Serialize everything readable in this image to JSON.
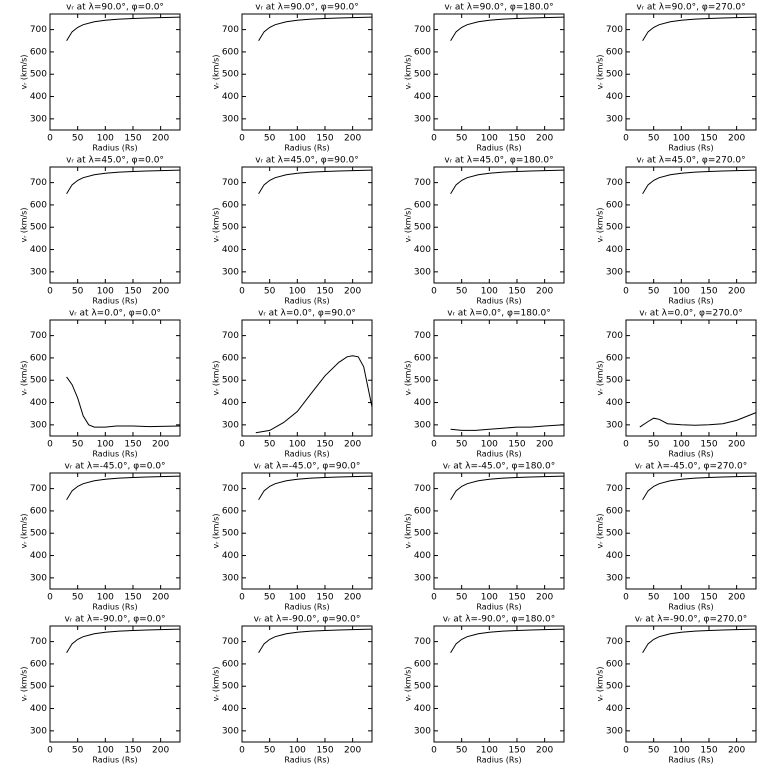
{
  "chart_data": [
    {
      "type": "line",
      "title": "vᵣ at λ=90.0°, φ=0.0°",
      "xlabel": "Radius (Rs)",
      "ylabel": "vᵣ (km/s)",
      "color": "#000000",
      "x": [
        30,
        40,
        50,
        60,
        80,
        100,
        125,
        150,
        175,
        200,
        235
      ],
      "values": [
        650,
        690,
        710,
        722,
        735,
        742,
        747,
        750,
        752,
        754,
        756
      ],
      "xlim": [
        0,
        235
      ],
      "ylim": [
        250,
        770
      ],
      "xticks": [
        0,
        50,
        100,
        150,
        200
      ],
      "yticks": [
        300,
        400,
        500,
        600,
        700
      ]
    },
    {
      "type": "line",
      "title": "vᵣ at λ=90.0°, φ=90.0°",
      "xlabel": "Radius (Rs)",
      "ylabel": "vᵣ (km/s)",
      "color": "#000000",
      "x": [
        30,
        40,
        50,
        60,
        80,
        100,
        125,
        150,
        175,
        200,
        235
      ],
      "values": [
        650,
        690,
        710,
        722,
        735,
        742,
        747,
        750,
        752,
        754,
        756
      ],
      "xlim": [
        0,
        235
      ],
      "ylim": [
        250,
        770
      ],
      "xticks": [
        0,
        50,
        100,
        150,
        200
      ],
      "yticks": [
        300,
        400,
        500,
        600,
        700
      ]
    },
    {
      "type": "line",
      "title": "vᵣ at λ=90.0°, φ=180.0°",
      "xlabel": "Radius (Rs)",
      "ylabel": "vᵣ (km/s)",
      "color": "#000000",
      "x": [
        30,
        40,
        50,
        60,
        80,
        100,
        125,
        150,
        175,
        200,
        235
      ],
      "values": [
        650,
        690,
        710,
        722,
        735,
        742,
        747,
        750,
        752,
        754,
        756
      ],
      "xlim": [
        0,
        235
      ],
      "ylim": [
        250,
        770
      ],
      "xticks": [
        0,
        50,
        100,
        150,
        200
      ],
      "yticks": [
        300,
        400,
        500,
        600,
        700
      ]
    },
    {
      "type": "line",
      "title": "vᵣ at λ=90.0°, φ=270.0°",
      "xlabel": "Radius (Rs)",
      "ylabel": "vᵣ (km/s)",
      "color": "#000000",
      "x": [
        30,
        40,
        50,
        60,
        80,
        100,
        125,
        150,
        175,
        200,
        235
      ],
      "values": [
        650,
        690,
        710,
        722,
        735,
        742,
        747,
        750,
        752,
        754,
        756
      ],
      "xlim": [
        0,
        235
      ],
      "ylim": [
        250,
        770
      ],
      "xticks": [
        0,
        50,
        100,
        150,
        200
      ],
      "yticks": [
        300,
        400,
        500,
        600,
        700
      ]
    },
    {
      "type": "line",
      "title": "vᵣ at λ=45.0°, φ=0.0°",
      "xlabel": "Radius (Rs)",
      "ylabel": "vᵣ (km/s)",
      "color": "#000000",
      "x": [
        30,
        40,
        50,
        60,
        80,
        100,
        125,
        150,
        175,
        200,
        235
      ],
      "values": [
        650,
        690,
        710,
        722,
        735,
        742,
        747,
        750,
        752,
        754,
        756
      ],
      "xlim": [
        0,
        235
      ],
      "ylim": [
        250,
        770
      ],
      "xticks": [
        0,
        50,
        100,
        150,
        200
      ],
      "yticks": [
        300,
        400,
        500,
        600,
        700
      ]
    },
    {
      "type": "line",
      "title": "vᵣ at λ=45.0°, φ=90.0°",
      "xlabel": "Radius (Rs)",
      "ylabel": "vᵣ (km/s)",
      "color": "#000000",
      "x": [
        30,
        40,
        50,
        60,
        80,
        100,
        125,
        150,
        175,
        200,
        235
      ],
      "values": [
        650,
        690,
        710,
        722,
        735,
        742,
        747,
        750,
        752,
        754,
        756
      ],
      "xlim": [
        0,
        235
      ],
      "ylim": [
        250,
        770
      ],
      "xticks": [
        0,
        50,
        100,
        150,
        200
      ],
      "yticks": [
        300,
        400,
        500,
        600,
        700
      ]
    },
    {
      "type": "line",
      "title": "vᵣ at λ=45.0°, φ=180.0°",
      "xlabel": "Radius (Rs)",
      "ylabel": "vᵣ (km/s)",
      "color": "#000000",
      "x": [
        30,
        40,
        50,
        60,
        80,
        100,
        125,
        150,
        175,
        200,
        235
      ],
      "values": [
        650,
        690,
        710,
        722,
        735,
        742,
        747,
        750,
        752,
        754,
        756
      ],
      "xlim": [
        0,
        235
      ],
      "ylim": [
        250,
        770
      ],
      "xticks": [
        0,
        50,
        100,
        150,
        200
      ],
      "yticks": [
        300,
        400,
        500,
        600,
        700
      ]
    },
    {
      "type": "line",
      "title": "vᵣ at λ=45.0°, φ=270.0°",
      "xlabel": "Radius (Rs)",
      "ylabel": "vᵣ (km/s)",
      "color": "#000000",
      "x": [
        30,
        40,
        50,
        60,
        80,
        100,
        125,
        150,
        175,
        200,
        235
      ],
      "values": [
        650,
        690,
        710,
        722,
        735,
        742,
        747,
        750,
        752,
        754,
        756
      ],
      "xlim": [
        0,
        235
      ],
      "ylim": [
        250,
        770
      ],
      "xticks": [
        0,
        50,
        100,
        150,
        200
      ],
      "yticks": [
        300,
        400,
        500,
        600,
        700
      ]
    },
    {
      "type": "line",
      "title": "vᵣ at λ=0.0°, φ=0.0°",
      "xlabel": "Radius (Rs)",
      "ylabel": "vᵣ (km/s)",
      "color": "#000000",
      "x": [
        30,
        40,
        50,
        60,
        70,
        80,
        100,
        120,
        150,
        180,
        200,
        235
      ],
      "values": [
        515,
        480,
        420,
        340,
        300,
        290,
        290,
        295,
        295,
        292,
        293,
        295
      ],
      "xlim": [
        0,
        235
      ],
      "ylim": [
        250,
        770
      ],
      "xticks": [
        0,
        50,
        100,
        150,
        200
      ],
      "yticks": [
        300,
        400,
        500,
        600,
        700
      ]
    },
    {
      "type": "line",
      "title": "vᵣ at λ=0.0°, φ=90.0°",
      "xlabel": "Radius (Rs)",
      "ylabel": "vᵣ (km/s)",
      "color": "#000000",
      "x": [
        25,
        50,
        75,
        100,
        125,
        150,
        175,
        190,
        200,
        210,
        220,
        235
      ],
      "values": [
        265,
        275,
        310,
        360,
        440,
        520,
        580,
        605,
        610,
        605,
        560,
        380
      ],
      "xlim": [
        0,
        235
      ],
      "ylim": [
        250,
        770
      ],
      "xticks": [
        0,
        50,
        100,
        150,
        200
      ],
      "yticks": [
        300,
        400,
        500,
        600,
        700
      ]
    },
    {
      "type": "line",
      "title": "vᵣ at λ=0.0°, φ=180.0°",
      "xlabel": "Radius (Rs)",
      "ylabel": "vᵣ (km/s)",
      "color": "#000000",
      "x": [
        30,
        50,
        75,
        100,
        125,
        150,
        175,
        200,
        235
      ],
      "values": [
        280,
        275,
        275,
        280,
        285,
        290,
        290,
        295,
        300
      ],
      "xlim": [
        0,
        235
      ],
      "ylim": [
        250,
        770
      ],
      "xticks": [
        0,
        50,
        100,
        150,
        200
      ],
      "yticks": [
        300,
        400,
        500,
        600,
        700
      ]
    },
    {
      "type": "line",
      "title": "vᵣ at λ=0.0°, φ=270.0°",
      "xlabel": "Radius (Rs)",
      "ylabel": "vᵣ (km/s)",
      "color": "#000000",
      "x": [
        25,
        40,
        50,
        60,
        75,
        100,
        125,
        150,
        175,
        200,
        235
      ],
      "values": [
        290,
        315,
        330,
        325,
        305,
        300,
        298,
        300,
        305,
        320,
        355
      ],
      "xlim": [
        0,
        235
      ],
      "ylim": [
        250,
        770
      ],
      "xticks": [
        0,
        50,
        100,
        150,
        200
      ],
      "yticks": [
        300,
        400,
        500,
        600,
        700
      ]
    },
    {
      "type": "line",
      "title": "vᵣ at λ=-45.0°, φ=0.0°",
      "xlabel": "Radius (Rs)",
      "ylabel": "vᵣ (km/s)",
      "color": "#000000",
      "x": [
        30,
        40,
        50,
        60,
        80,
        100,
        125,
        150,
        175,
        200,
        235
      ],
      "values": [
        650,
        690,
        710,
        722,
        735,
        742,
        747,
        750,
        752,
        754,
        756
      ],
      "xlim": [
        0,
        235
      ],
      "ylim": [
        250,
        770
      ],
      "xticks": [
        0,
        50,
        100,
        150,
        200
      ],
      "yticks": [
        300,
        400,
        500,
        600,
        700
      ]
    },
    {
      "type": "line",
      "title": "vᵣ at λ=-45.0°, φ=90.0°",
      "xlabel": "Radius (Rs)",
      "ylabel": "vᵣ (km/s)",
      "color": "#000000",
      "x": [
        30,
        40,
        50,
        60,
        80,
        100,
        125,
        150,
        175,
        200,
        235
      ],
      "values": [
        650,
        690,
        710,
        722,
        735,
        742,
        747,
        750,
        752,
        754,
        756
      ],
      "xlim": [
        0,
        235
      ],
      "ylim": [
        250,
        770
      ],
      "xticks": [
        0,
        50,
        100,
        150,
        200
      ],
      "yticks": [
        300,
        400,
        500,
        600,
        700
      ]
    },
    {
      "type": "line",
      "title": "vᵣ at λ=-45.0°, φ=180.0°",
      "xlabel": "Radius (Rs)",
      "ylabel": "vᵣ (km/s)",
      "color": "#000000",
      "x": [
        30,
        40,
        50,
        60,
        80,
        100,
        125,
        150,
        175,
        200,
        235
      ],
      "values": [
        650,
        690,
        710,
        722,
        735,
        742,
        747,
        750,
        752,
        754,
        756
      ],
      "xlim": [
        0,
        235
      ],
      "ylim": [
        250,
        770
      ],
      "xticks": [
        0,
        50,
        100,
        150,
        200
      ],
      "yticks": [
        300,
        400,
        500,
        600,
        700
      ]
    },
    {
      "type": "line",
      "title": "vᵣ at λ=-45.0°, φ=270.0°",
      "xlabel": "Radius (Rs)",
      "ylabel": "vᵣ (km/s)",
      "color": "#000000",
      "x": [
        30,
        40,
        50,
        60,
        80,
        100,
        125,
        150,
        175,
        200,
        235
      ],
      "values": [
        650,
        690,
        710,
        722,
        735,
        742,
        747,
        750,
        752,
        754,
        756
      ],
      "xlim": [
        0,
        235
      ],
      "ylim": [
        250,
        770
      ],
      "xticks": [
        0,
        50,
        100,
        150,
        200
      ],
      "yticks": [
        300,
        400,
        500,
        600,
        700
      ]
    },
    {
      "type": "line",
      "title": "vᵣ at λ=-90.0°, φ=0.0°",
      "xlabel": "Radius (Rs)",
      "ylabel": "vᵣ (km/s)",
      "color": "#000000",
      "x": [
        30,
        40,
        50,
        60,
        80,
        100,
        125,
        150,
        175,
        200,
        235
      ],
      "values": [
        650,
        690,
        710,
        722,
        735,
        742,
        747,
        750,
        752,
        754,
        756
      ],
      "xlim": [
        0,
        235
      ],
      "ylim": [
        250,
        770
      ],
      "xticks": [
        0,
        50,
        100,
        150,
        200
      ],
      "yticks": [
        300,
        400,
        500,
        600,
        700
      ]
    },
    {
      "type": "line",
      "title": "vᵣ at λ=-90.0°, φ=90.0°",
      "xlabel": "Radius (Rs)",
      "ylabel": "vᵣ (km/s)",
      "color": "#000000",
      "x": [
        30,
        40,
        50,
        60,
        80,
        100,
        125,
        150,
        175,
        200,
        235
      ],
      "values": [
        650,
        690,
        710,
        722,
        735,
        742,
        747,
        750,
        752,
        754,
        756
      ],
      "xlim": [
        0,
        235
      ],
      "ylim": [
        250,
        770
      ],
      "xticks": [
        0,
        50,
        100,
        150,
        200
      ],
      "yticks": [
        300,
        400,
        500,
        600,
        700
      ]
    },
    {
      "type": "line",
      "title": "vᵣ at λ=-90.0°, φ=180.0°",
      "xlabel": "Radius (Rs)",
      "ylabel": "vᵣ (km/s)",
      "color": "#000000",
      "x": [
        30,
        40,
        50,
        60,
        80,
        100,
        125,
        150,
        175,
        200,
        235
      ],
      "values": [
        650,
        690,
        710,
        722,
        735,
        742,
        747,
        750,
        752,
        754,
        756
      ],
      "xlim": [
        0,
        235
      ],
      "ylim": [
        250,
        770
      ],
      "xticks": [
        0,
        50,
        100,
        150,
        200
      ],
      "yticks": [
        300,
        400,
        500,
        600,
        700
      ]
    },
    {
      "type": "line",
      "title": "vᵣ at λ=-90.0°, φ=270.0°",
      "xlabel": "Radius (Rs)",
      "ylabel": "vᵣ (km/s)",
      "color": "#000000",
      "x": [
        30,
        40,
        50,
        60,
        80,
        100,
        125,
        150,
        175,
        200,
        235
      ],
      "values": [
        650,
        690,
        710,
        722,
        735,
        742,
        747,
        750,
        752,
        754,
        756
      ],
      "xlim": [
        0,
        235
      ],
      "ylim": [
        250,
        770
      ],
      "xticks": [
        0,
        50,
        100,
        150,
        200
      ],
      "yticks": [
        300,
        400,
        500,
        600,
        700
      ]
    }
  ]
}
